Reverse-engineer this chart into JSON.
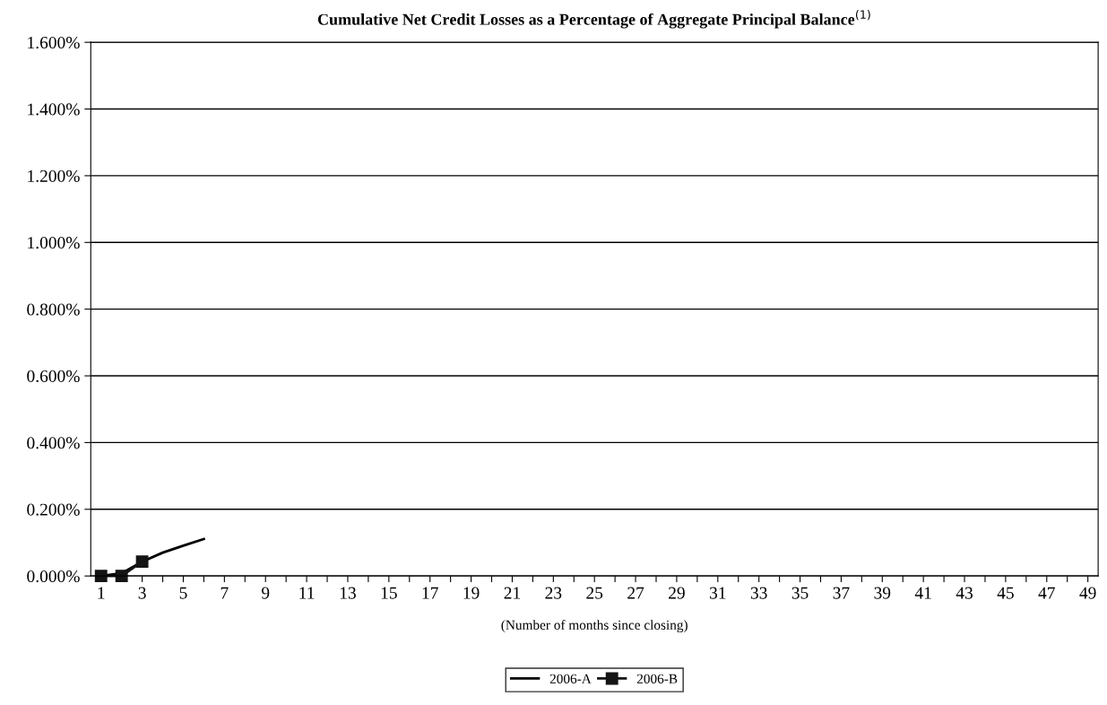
{
  "chart_data": {
    "type": "line",
    "title": "Cumulative Net Credit Losses as a Percentage of Aggregate Principal Balance$^{(1)}$",
    "xlabel": "(Number of months since closing)",
    "categories": [
      "1",
      null,
      "3",
      null,
      "5",
      null,
      "7",
      null,
      "9",
      null,
      "11",
      null,
      "13",
      null,
      "15",
      null,
      "17",
      null,
      "19",
      null,
      "21",
      null,
      "23",
      null,
      "25",
      null,
      "27",
      null,
      "29",
      null,
      "31",
      null,
      "33",
      null,
      "35",
      null,
      "37",
      null,
      "39",
      null,
      "41",
      null,
      "43",
      null,
      "45",
      null,
      "47",
      null,
      "49"
    ],
    "series": [
      {
        "name": "2006-A",
        "color": "#000000",
        "marker": "none",
        "values": [
          0.0,
          0.008,
          0.043,
          0.07,
          0.091,
          0.111,
          null,
          null,
          null,
          null,
          null,
          null,
          null,
          null,
          null,
          null,
          null,
          null,
          null,
          null,
          null,
          null,
          null,
          null,
          null,
          null,
          null,
          null,
          null,
          null,
          null,
          null,
          null,
          null,
          null,
          null,
          null,
          null,
          null,
          null,
          null,
          null,
          null,
          null,
          null,
          null,
          null,
          null,
          null
        ]
      },
      {
        "name": "2006-B",
        "color": "#141414",
        "marker": "square",
        "values": [
          0.0,
          0.0,
          0.043,
          null,
          null,
          null,
          null,
          null,
          null,
          null,
          null,
          null,
          null,
          null,
          null,
          null,
          null,
          null,
          null,
          null,
          null,
          null,
          null,
          null,
          null,
          null,
          null,
          null,
          null,
          null,
          null,
          null,
          null,
          null,
          null,
          null,
          null,
          null,
          null,
          null,
          null,
          null,
          null,
          null,
          null,
          null,
          null,
          null,
          null
        ]
      }
    ],
    "ylim": [
      0,
      1.6
    ],
    "yticks": [
      {
        "value": 0,
        "label": "0.000%"
      },
      {
        "value": 0.2,
        "label": "0.200%"
      },
      {
        "value": 0.4,
        "label": "0.400%"
      },
      {
        "value": 0.6,
        "label": "0.600%"
      },
      {
        "value": 0.8,
        "label": "0.800%"
      },
      {
        "value": 1.0,
        "label": "1.000%"
      },
      {
        "value": 1.2,
        "label": "1.200%"
      },
      {
        "value": 1.4,
        "label": "1.400%"
      },
      {
        "value": 1.6,
        "label": "1.600%"
      }
    ],
    "grid": "y",
    "legend": "bottom",
    "line_style": "solid"
  }
}
